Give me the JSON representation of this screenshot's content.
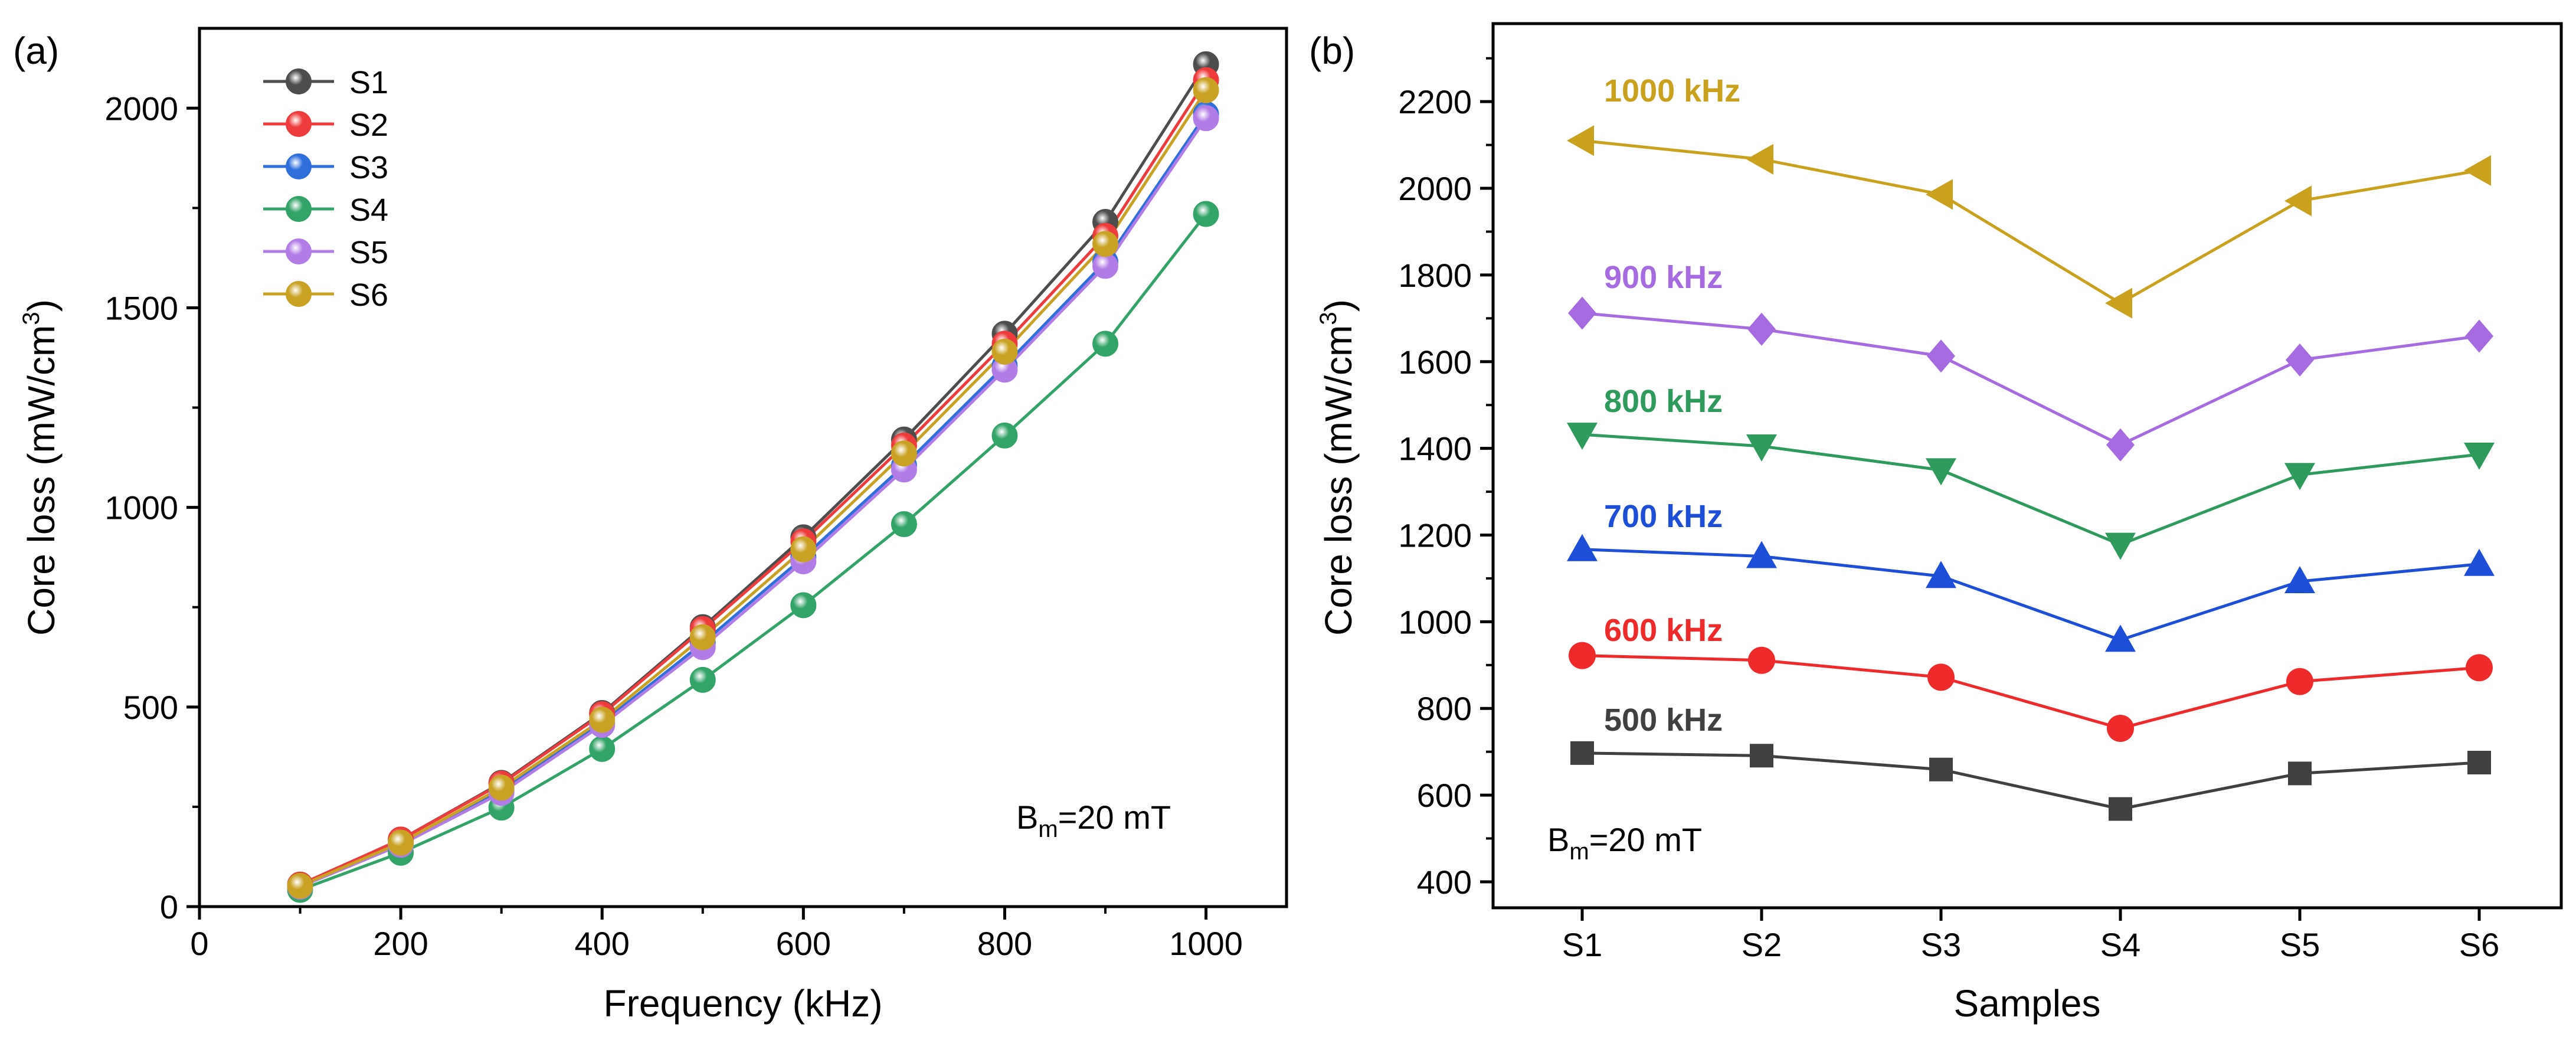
{
  "colors": {
    "S1": "#4d4d4d",
    "S2": "#ee3b3b",
    "S3": "#2f6fdc",
    "S4": "#33a468",
    "S5": "#b27ce6",
    "S6": "#c9a224",
    "f500": "#404040",
    "f600": "#ee2a2a",
    "f700": "#1d4ed8",
    "f800": "#2e9b5c",
    "f900": "#a66be0",
    "f1000": "#c9a11d"
  },
  "chart_data": [
    {
      "id": "a",
      "panel_label": "(a)",
      "type": "line",
      "xlabel": "Frequency (kHz)",
      "ylabel": "Core loss (mW/cm3)",
      "ylabel_main": "Core loss (mW/cm",
      "ylabel_sup": "3",
      "ylabel_close": ")",
      "xlim": [
        0,
        1080
      ],
      "ylim": [
        0,
        2200
      ],
      "xticks": [
        0,
        200,
        400,
        600,
        800,
        1000
      ],
      "yticks": [
        0,
        500,
        1000,
        1500,
        2000
      ],
      "xtick_labels": [
        "0",
        "200",
        "400",
        "600",
        "800",
        "1000"
      ],
      "ytick_labels": [
        "0",
        "500",
        "1000",
        "1500",
        "2000"
      ],
      "annotation": {
        "main": "B",
        "sub": "m",
        "rest": "=20 mT"
      },
      "legend": [
        "S1",
        "S2",
        "S3",
        "S4",
        "S5",
        "S6"
      ],
      "x": [
        100,
        200,
        300,
        400,
        500,
        600,
        700,
        800,
        900,
        1000
      ],
      "series": [
        {
          "name": "S1",
          "values": [
            55,
            168,
            310,
            485,
            700,
            925,
            1170,
            1435,
            1715,
            2110
          ]
        },
        {
          "name": "S2",
          "values": [
            55,
            168,
            308,
            482,
            695,
            915,
            1155,
            1410,
            1680,
            2070
          ]
        },
        {
          "name": "S3",
          "values": [
            50,
            155,
            290,
            460,
            660,
            875,
            1105,
            1355,
            1615,
            1985
          ]
        },
        {
          "name": "S4",
          "values": [
            42,
            135,
            248,
            395,
            568,
            755,
            958,
            1180,
            1410,
            1735
          ]
        },
        {
          "name": "S5",
          "values": [
            50,
            155,
            285,
            455,
            650,
            865,
            1095,
            1345,
            1605,
            1975
          ]
        },
        {
          "name": "S6",
          "values": [
            52,
            160,
            298,
            468,
            675,
            895,
            1135,
            1390,
            1660,
            2045
          ]
        }
      ]
    },
    {
      "id": "b",
      "panel_label": "(b)",
      "type": "line",
      "xlabel": "Samples",
      "ylabel": "Core loss (mW/cm3)",
      "ylabel_main": "Core loss (mW/cm",
      "ylabel_sup": "3",
      "ylabel_close": ")",
      "categories": [
        "S1",
        "S2",
        "S3",
        "S4",
        "S5",
        "S6"
      ],
      "ylim": [
        340,
        2380
      ],
      "yticks": [
        400,
        600,
        800,
        1000,
        1200,
        1400,
        1600,
        1800,
        2000,
        2200
      ],
      "ytick_labels": [
        "400",
        "600",
        "800",
        "1000",
        "1200",
        "1400",
        "1600",
        "1800",
        "2000",
        "2200"
      ],
      "annotation": {
        "main": "B",
        "sub": "m",
        "rest": "=20 mT"
      },
      "series": [
        {
          "name": "500 kHz",
          "marker": "square",
          "values": [
            697,
            691,
            659,
            568,
            650,
            675
          ]
        },
        {
          "name": "600 kHz",
          "marker": "circle",
          "values": [
            922,
            911,
            872,
            754,
            862,
            894
          ]
        },
        {
          "name": "700 kHz",
          "marker": "triangle-up",
          "values": [
            1167,
            1151,
            1105,
            958,
            1093,
            1133
          ]
        },
        {
          "name": "800 kHz",
          "marker": "triangle-down",
          "values": [
            1432,
            1405,
            1350,
            1178,
            1339,
            1386
          ]
        },
        {
          "name": "900 kHz",
          "marker": "diamond",
          "values": [
            1712,
            1675,
            1613,
            1408,
            1604,
            1659
          ]
        },
        {
          "name": "1000 kHz",
          "marker": "triangle-left",
          "values": [
            2110,
            2067,
            1986,
            1735,
            1971,
            2041
          ]
        }
      ]
    }
  ]
}
